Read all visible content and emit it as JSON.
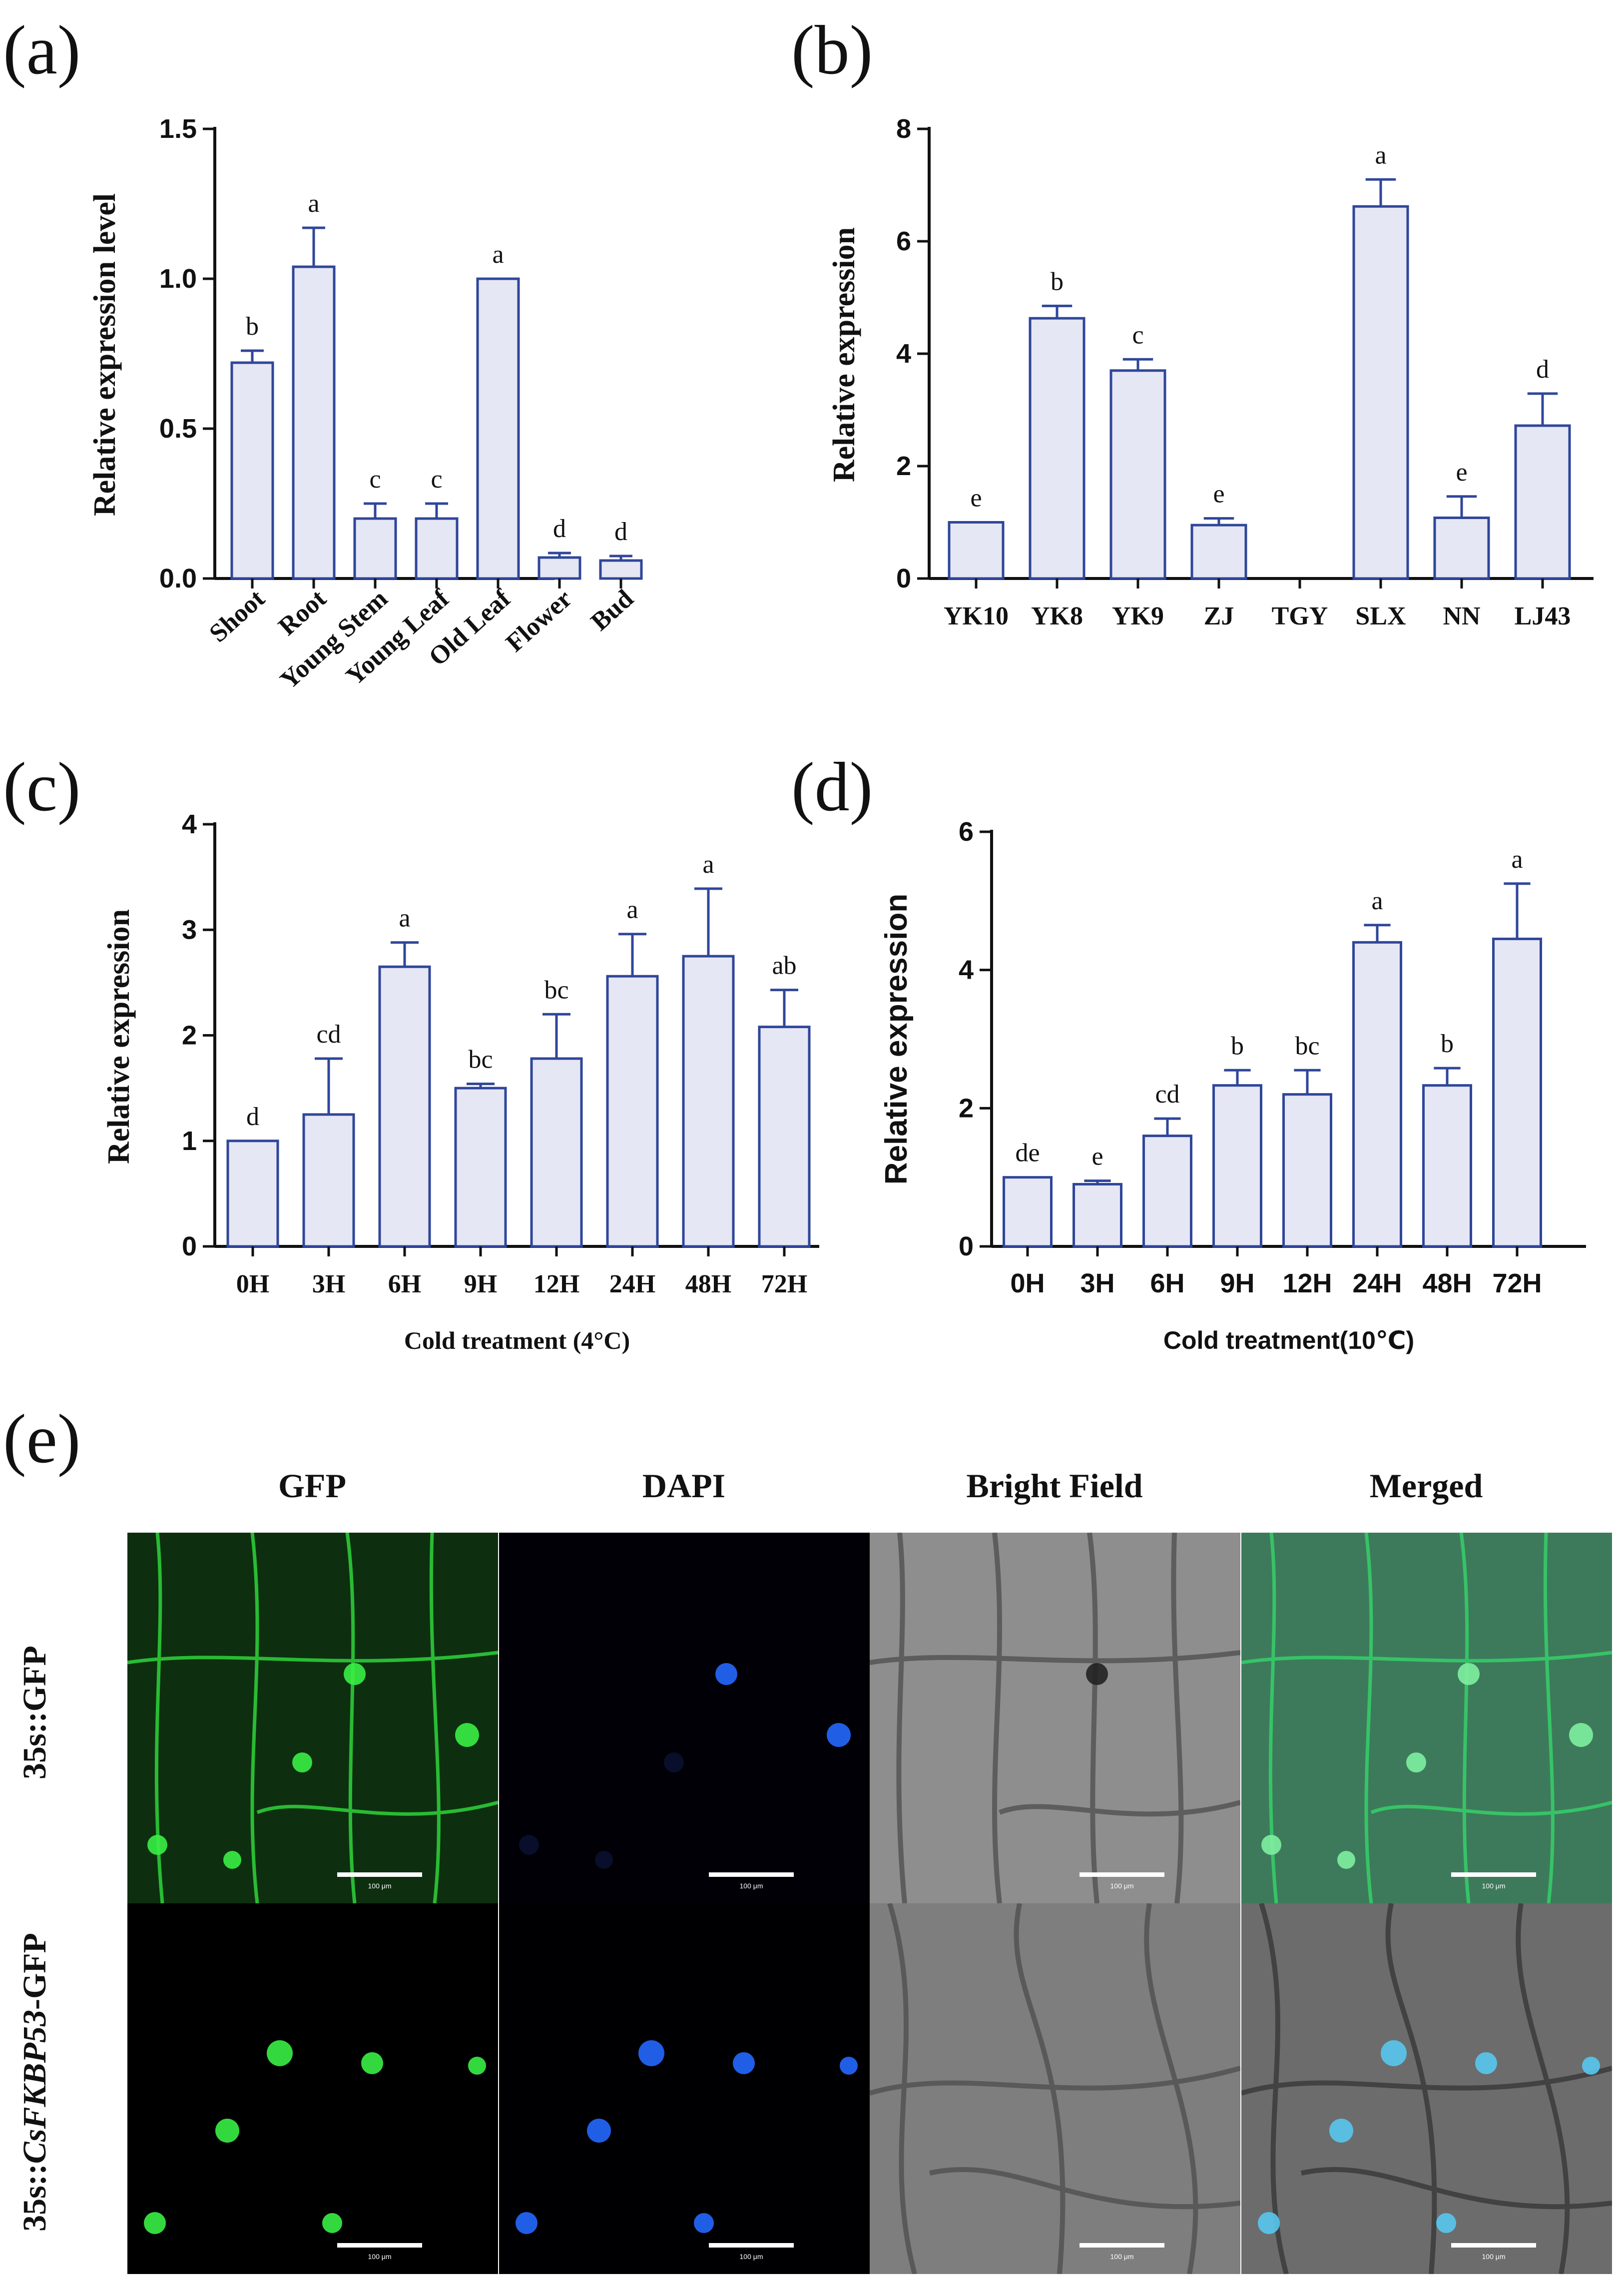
{
  "panel_letters": {
    "a": "(a)",
    "b": "(b)",
    "c": "(c)",
    "d": "(d)",
    "e": "(e)"
  },
  "chart_data": [
    {
      "id": "a",
      "type": "bar",
      "title": "",
      "ylabel": "Relative expression level",
      "xlabel": "",
      "ylim": [
        0,
        1.5
      ],
      "yticks": [
        "0.0",
        "0.5",
        "1.0",
        "1.5"
      ],
      "ytick_values": [
        0,
        0.5,
        1.0,
        1.5
      ],
      "categories": [
        "Shoot",
        "Root",
        "Young Stem",
        "Young Leaf",
        "Old Leaf",
        "Flower",
        "Bud"
      ],
      "values": [
        0.72,
        1.04,
        0.2,
        0.2,
        1.0,
        0.07,
        0.06
      ],
      "errors": [
        0.04,
        0.13,
        0.05,
        0.05,
        0.0,
        0.015,
        0.015
      ],
      "letters": [
        "b",
        "a",
        "c",
        "c",
        "a",
        "d",
        "d"
      ],
      "bar_color": "#e6e7f4",
      "edge_color": "#2f469a"
    },
    {
      "id": "b",
      "type": "bar",
      "title": "",
      "ylabel": "Relative expression",
      "xlabel": "",
      "ylim": [
        0,
        8
      ],
      "yticks": [
        "0",
        "2",
        "4",
        "6",
        "8"
      ],
      "ytick_values": [
        0,
        2,
        4,
        6,
        8
      ],
      "categories": [
        "YK10",
        "YK8",
        "YK9",
        "ZJ",
        "TGY",
        "SLX",
        "NN",
        "LJ43"
      ],
      "values": [
        1.0,
        4.63,
        3.7,
        0.95,
        0.0,
        6.62,
        1.08,
        2.72
      ],
      "errors": [
        0.0,
        0.22,
        0.2,
        0.12,
        0.0,
        0.48,
        0.38,
        0.57
      ],
      "letters": [
        "e",
        "b",
        "c",
        "e",
        "",
        "a",
        "e",
        "d"
      ],
      "bar_color": "#e6e7f4",
      "edge_color": "#2f469a"
    },
    {
      "id": "c",
      "type": "bar",
      "title": "",
      "ylabel": "Relative expression",
      "xlabel": "Cold treatment (4°C)",
      "ylim": [
        0,
        4
      ],
      "yticks": [
        "0",
        "1",
        "2",
        "3",
        "4"
      ],
      "ytick_values": [
        0,
        1,
        2,
        3,
        4
      ],
      "categories": [
        "0H",
        "3H",
        "6H",
        "9H",
        "12H",
        "24H",
        "48H",
        "72H"
      ],
      "values": [
        1.0,
        1.25,
        2.65,
        1.5,
        1.78,
        2.56,
        2.75,
        2.08
      ],
      "errors": [
        0.0,
        0.53,
        0.23,
        0.04,
        0.42,
        0.4,
        0.64,
        0.35
      ],
      "letters": [
        "d",
        "cd",
        "a",
        "bc",
        "bc",
        "a",
        "a",
        "ab"
      ],
      "bar_color": "#e6e7f4",
      "edge_color": "#2f469a"
    },
    {
      "id": "d",
      "type": "bar",
      "title": "",
      "ylabel": "Relative expression",
      "xlabel": "Cold treatment(10℃)",
      "ylim": [
        0,
        6
      ],
      "yticks": [
        "0",
        "2",
        "4",
        "6"
      ],
      "ytick_values": [
        0,
        2,
        4,
        6
      ],
      "categories": [
        "0H",
        "3H",
        "6H",
        "9H",
        "12H",
        "24H",
        "48H",
        "72H"
      ],
      "values": [
        1.0,
        0.9,
        1.6,
        2.33,
        2.2,
        4.4,
        2.33,
        4.45
      ],
      "errors": [
        0.0,
        0.05,
        0.25,
        0.22,
        0.35,
        0.25,
        0.25,
        0.8
      ],
      "letters": [
        "de",
        "e",
        "cd",
        "b",
        "bc",
        "a",
        "b",
        "a"
      ],
      "bar_color": "#e6e7f4",
      "edge_color": "#2f469a"
    }
  ],
  "microscopy": {
    "columns": [
      "GFP",
      "DAPI",
      "Bright Field",
      "Merged"
    ],
    "rows": [
      {
        "label_prefix": "35s::GFP",
        "label_italic": "",
        "label_suffix": ""
      },
      {
        "label_prefix": "35s::",
        "label_italic": "CsFKBP53",
        "label_suffix": "-GFP"
      }
    ],
    "scale_bar_text": "100 μm",
    "colors": {
      "gfp": "#2fd33b",
      "dapi": "#2a5cff",
      "bright": "#8f8f8f",
      "merged": "#3c7a5a"
    }
  }
}
